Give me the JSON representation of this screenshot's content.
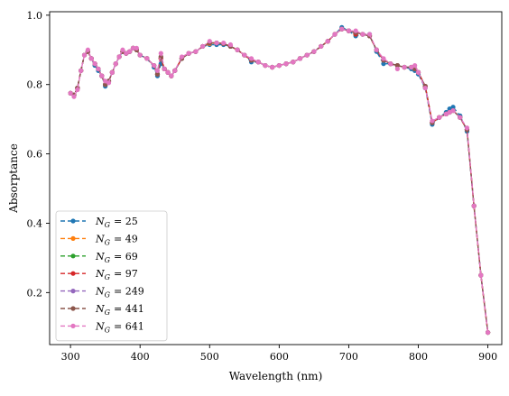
{
  "chart_data": {
    "type": "line",
    "xlabel": "Wavelength (nm)",
    "ylabel": "Absorptance",
    "xlim": [
      270,
      920
    ],
    "ylim": [
      0.05,
      1.01
    ],
    "xticks": [
      300,
      400,
      500,
      600,
      700,
      800,
      900
    ],
    "yticks": [
      0.2,
      0.4,
      0.6,
      0.8,
      1.0
    ],
    "xtick_labels": [
      "300",
      "400",
      "500",
      "600",
      "700",
      "800",
      "900"
    ],
    "ytick_labels": [
      "0.2",
      "0.4",
      "0.6",
      "0.8",
      "1.0"
    ],
    "grid": false,
    "legend_position": "lower-left",
    "x": [
      300,
      305,
      310,
      315,
      320,
      325,
      330,
      335,
      340,
      345,
      350,
      355,
      360,
      365,
      370,
      375,
      380,
      385,
      390,
      395,
      400,
      410,
      420,
      425,
      430,
      435,
      440,
      445,
      450,
      460,
      470,
      480,
      490,
      500,
      510,
      520,
      530,
      540,
      550,
      560,
      570,
      580,
      590,
      600,
      610,
      620,
      630,
      640,
      650,
      660,
      670,
      680,
      690,
      700,
      710,
      720,
      730,
      740,
      750,
      760,
      770,
      780,
      790,
      795,
      800,
      810,
      820,
      830,
      840,
      845,
      850,
      860,
      870,
      880,
      890,
      900
    ],
    "series": [
      {
        "name": "N_G = 25",
        "legend_prefix": "N",
        "legend_sub": "G",
        "legend_value": "= 25",
        "color": "#1f77b4",
        "values": [
          0.775,
          0.77,
          0.79,
          0.84,
          0.885,
          0.895,
          0.875,
          0.855,
          0.84,
          0.825,
          0.795,
          0.81,
          0.835,
          0.86,
          0.88,
          0.895,
          0.89,
          0.895,
          0.905,
          0.9,
          0.885,
          0.875,
          0.85,
          0.825,
          0.86,
          0.845,
          0.835,
          0.825,
          0.84,
          0.875,
          0.89,
          0.895,
          0.91,
          0.915,
          0.915,
          0.915,
          0.91,
          0.9,
          0.885,
          0.865,
          0.865,
          0.855,
          0.85,
          0.855,
          0.86,
          0.865,
          0.875,
          0.885,
          0.895,
          0.91,
          0.925,
          0.945,
          0.965,
          0.955,
          0.94,
          0.945,
          0.945,
          0.895,
          0.86,
          0.86,
          0.855,
          0.85,
          0.845,
          0.84,
          0.83,
          0.79,
          0.685,
          0.705,
          0.72,
          0.73,
          0.735,
          0.71,
          0.665,
          0.45,
          0.25,
          0.085
        ]
      },
      {
        "name": "N_G = 49",
        "legend_prefix": "N",
        "legend_sub": "G",
        "legend_value": "= 49",
        "color": "#ff7f0e",
        "values": [
          0.775,
          0.77,
          0.79,
          0.84,
          0.885,
          0.895,
          0.875,
          0.86,
          0.845,
          0.825,
          0.8,
          0.81,
          0.835,
          0.86,
          0.88,
          0.895,
          0.89,
          0.895,
          0.905,
          0.9,
          0.885,
          0.875,
          0.855,
          0.83,
          0.875,
          0.845,
          0.835,
          0.825,
          0.84,
          0.875,
          0.89,
          0.895,
          0.91,
          0.918,
          0.92,
          0.918,
          0.91,
          0.9,
          0.885,
          0.87,
          0.865,
          0.855,
          0.85,
          0.855,
          0.86,
          0.865,
          0.875,
          0.885,
          0.895,
          0.91,
          0.925,
          0.945,
          0.96,
          0.955,
          0.945,
          0.945,
          0.94,
          0.9,
          0.87,
          0.86,
          0.855,
          0.85,
          0.85,
          0.845,
          0.835,
          0.795,
          0.69,
          0.705,
          0.715,
          0.72,
          0.725,
          0.705,
          0.67,
          0.45,
          0.25,
          0.085
        ]
      },
      {
        "name": "N_G = 69",
        "legend_prefix": "N",
        "legend_sub": "G",
        "legend_value": "= 69",
        "color": "#2ca02c",
        "values": [
          0.775,
          0.77,
          0.79,
          0.84,
          0.885,
          0.895,
          0.875,
          0.86,
          0.845,
          0.825,
          0.8,
          0.81,
          0.835,
          0.86,
          0.88,
          0.895,
          0.89,
          0.895,
          0.905,
          0.9,
          0.885,
          0.875,
          0.855,
          0.83,
          0.875,
          0.845,
          0.835,
          0.825,
          0.84,
          0.875,
          0.89,
          0.895,
          0.91,
          0.92,
          0.92,
          0.918,
          0.91,
          0.9,
          0.885,
          0.87,
          0.865,
          0.855,
          0.85,
          0.855,
          0.86,
          0.865,
          0.875,
          0.885,
          0.895,
          0.91,
          0.925,
          0.945,
          0.96,
          0.955,
          0.945,
          0.945,
          0.94,
          0.9,
          0.87,
          0.86,
          0.855,
          0.85,
          0.85,
          0.845,
          0.835,
          0.795,
          0.69,
          0.705,
          0.715,
          0.72,
          0.725,
          0.705,
          0.67,
          0.45,
          0.25,
          0.085
        ]
      },
      {
        "name": "N_G = 97",
        "legend_prefix": "N",
        "legend_sub": "G",
        "legend_value": "= 97",
        "color": "#d62728",
        "values": [
          0.775,
          0.77,
          0.79,
          0.84,
          0.885,
          0.895,
          0.875,
          0.86,
          0.845,
          0.825,
          0.8,
          0.81,
          0.835,
          0.86,
          0.88,
          0.895,
          0.89,
          0.895,
          0.905,
          0.9,
          0.885,
          0.875,
          0.855,
          0.83,
          0.875,
          0.845,
          0.835,
          0.825,
          0.84,
          0.875,
          0.89,
          0.895,
          0.91,
          0.92,
          0.92,
          0.918,
          0.91,
          0.9,
          0.885,
          0.87,
          0.865,
          0.855,
          0.85,
          0.855,
          0.86,
          0.865,
          0.875,
          0.885,
          0.895,
          0.91,
          0.925,
          0.945,
          0.96,
          0.955,
          0.945,
          0.945,
          0.94,
          0.9,
          0.87,
          0.86,
          0.855,
          0.85,
          0.85,
          0.845,
          0.835,
          0.795,
          0.69,
          0.705,
          0.715,
          0.72,
          0.725,
          0.705,
          0.67,
          0.45,
          0.25,
          0.085
        ]
      },
      {
        "name": "N_G = 249",
        "legend_prefix": "N",
        "legend_sub": "G",
        "legend_value": "= 249",
        "color": "#9467bd",
        "values": [
          0.775,
          0.77,
          0.79,
          0.84,
          0.885,
          0.895,
          0.875,
          0.86,
          0.845,
          0.825,
          0.8,
          0.81,
          0.835,
          0.86,
          0.88,
          0.895,
          0.89,
          0.895,
          0.905,
          0.9,
          0.885,
          0.875,
          0.855,
          0.83,
          0.88,
          0.845,
          0.835,
          0.825,
          0.84,
          0.875,
          0.89,
          0.895,
          0.91,
          0.92,
          0.92,
          0.918,
          0.91,
          0.9,
          0.885,
          0.87,
          0.865,
          0.855,
          0.85,
          0.855,
          0.86,
          0.865,
          0.875,
          0.885,
          0.895,
          0.91,
          0.925,
          0.945,
          0.96,
          0.955,
          0.95,
          0.945,
          0.94,
          0.9,
          0.87,
          0.86,
          0.855,
          0.85,
          0.85,
          0.845,
          0.835,
          0.795,
          0.69,
          0.705,
          0.715,
          0.72,
          0.725,
          0.705,
          0.67,
          0.45,
          0.25,
          0.085
        ]
      },
      {
        "name": "N_G = 441",
        "legend_prefix": "N",
        "legend_sub": "G",
        "legend_value": "= 441",
        "color": "#8c564b",
        "values": [
          0.775,
          0.77,
          0.79,
          0.84,
          0.885,
          0.895,
          0.875,
          0.86,
          0.845,
          0.825,
          0.8,
          0.81,
          0.835,
          0.86,
          0.88,
          0.895,
          0.89,
          0.895,
          0.905,
          0.9,
          0.885,
          0.875,
          0.855,
          0.83,
          0.88,
          0.845,
          0.835,
          0.825,
          0.84,
          0.875,
          0.89,
          0.895,
          0.91,
          0.92,
          0.92,
          0.918,
          0.91,
          0.9,
          0.885,
          0.87,
          0.865,
          0.855,
          0.85,
          0.855,
          0.86,
          0.865,
          0.875,
          0.885,
          0.895,
          0.91,
          0.925,
          0.945,
          0.96,
          0.955,
          0.95,
          0.945,
          0.94,
          0.9,
          0.87,
          0.86,
          0.855,
          0.85,
          0.85,
          0.845,
          0.835,
          0.795,
          0.69,
          0.705,
          0.715,
          0.72,
          0.725,
          0.705,
          0.67,
          0.45,
          0.25,
          0.085
        ]
      },
      {
        "name": "N_G = 641",
        "legend_prefix": "N",
        "legend_sub": "G",
        "legend_value": "= 641",
        "color": "#e377c2",
        "values": [
          0.775,
          0.765,
          0.785,
          0.84,
          0.885,
          0.9,
          0.875,
          0.86,
          0.845,
          0.825,
          0.81,
          0.805,
          0.835,
          0.86,
          0.88,
          0.9,
          0.89,
          0.895,
          0.905,
          0.905,
          0.885,
          0.875,
          0.855,
          0.84,
          0.89,
          0.845,
          0.835,
          0.825,
          0.84,
          0.88,
          0.89,
          0.895,
          0.91,
          0.925,
          0.92,
          0.92,
          0.915,
          0.9,
          0.885,
          0.875,
          0.865,
          0.855,
          0.85,
          0.855,
          0.86,
          0.865,
          0.875,
          0.885,
          0.895,
          0.91,
          0.925,
          0.945,
          0.96,
          0.955,
          0.955,
          0.945,
          0.945,
          0.9,
          0.875,
          0.86,
          0.845,
          0.85,
          0.85,
          0.855,
          0.835,
          0.79,
          0.695,
          0.705,
          0.715,
          0.72,
          0.725,
          0.705,
          0.675,
          0.45,
          0.25,
          0.085
        ]
      }
    ]
  }
}
